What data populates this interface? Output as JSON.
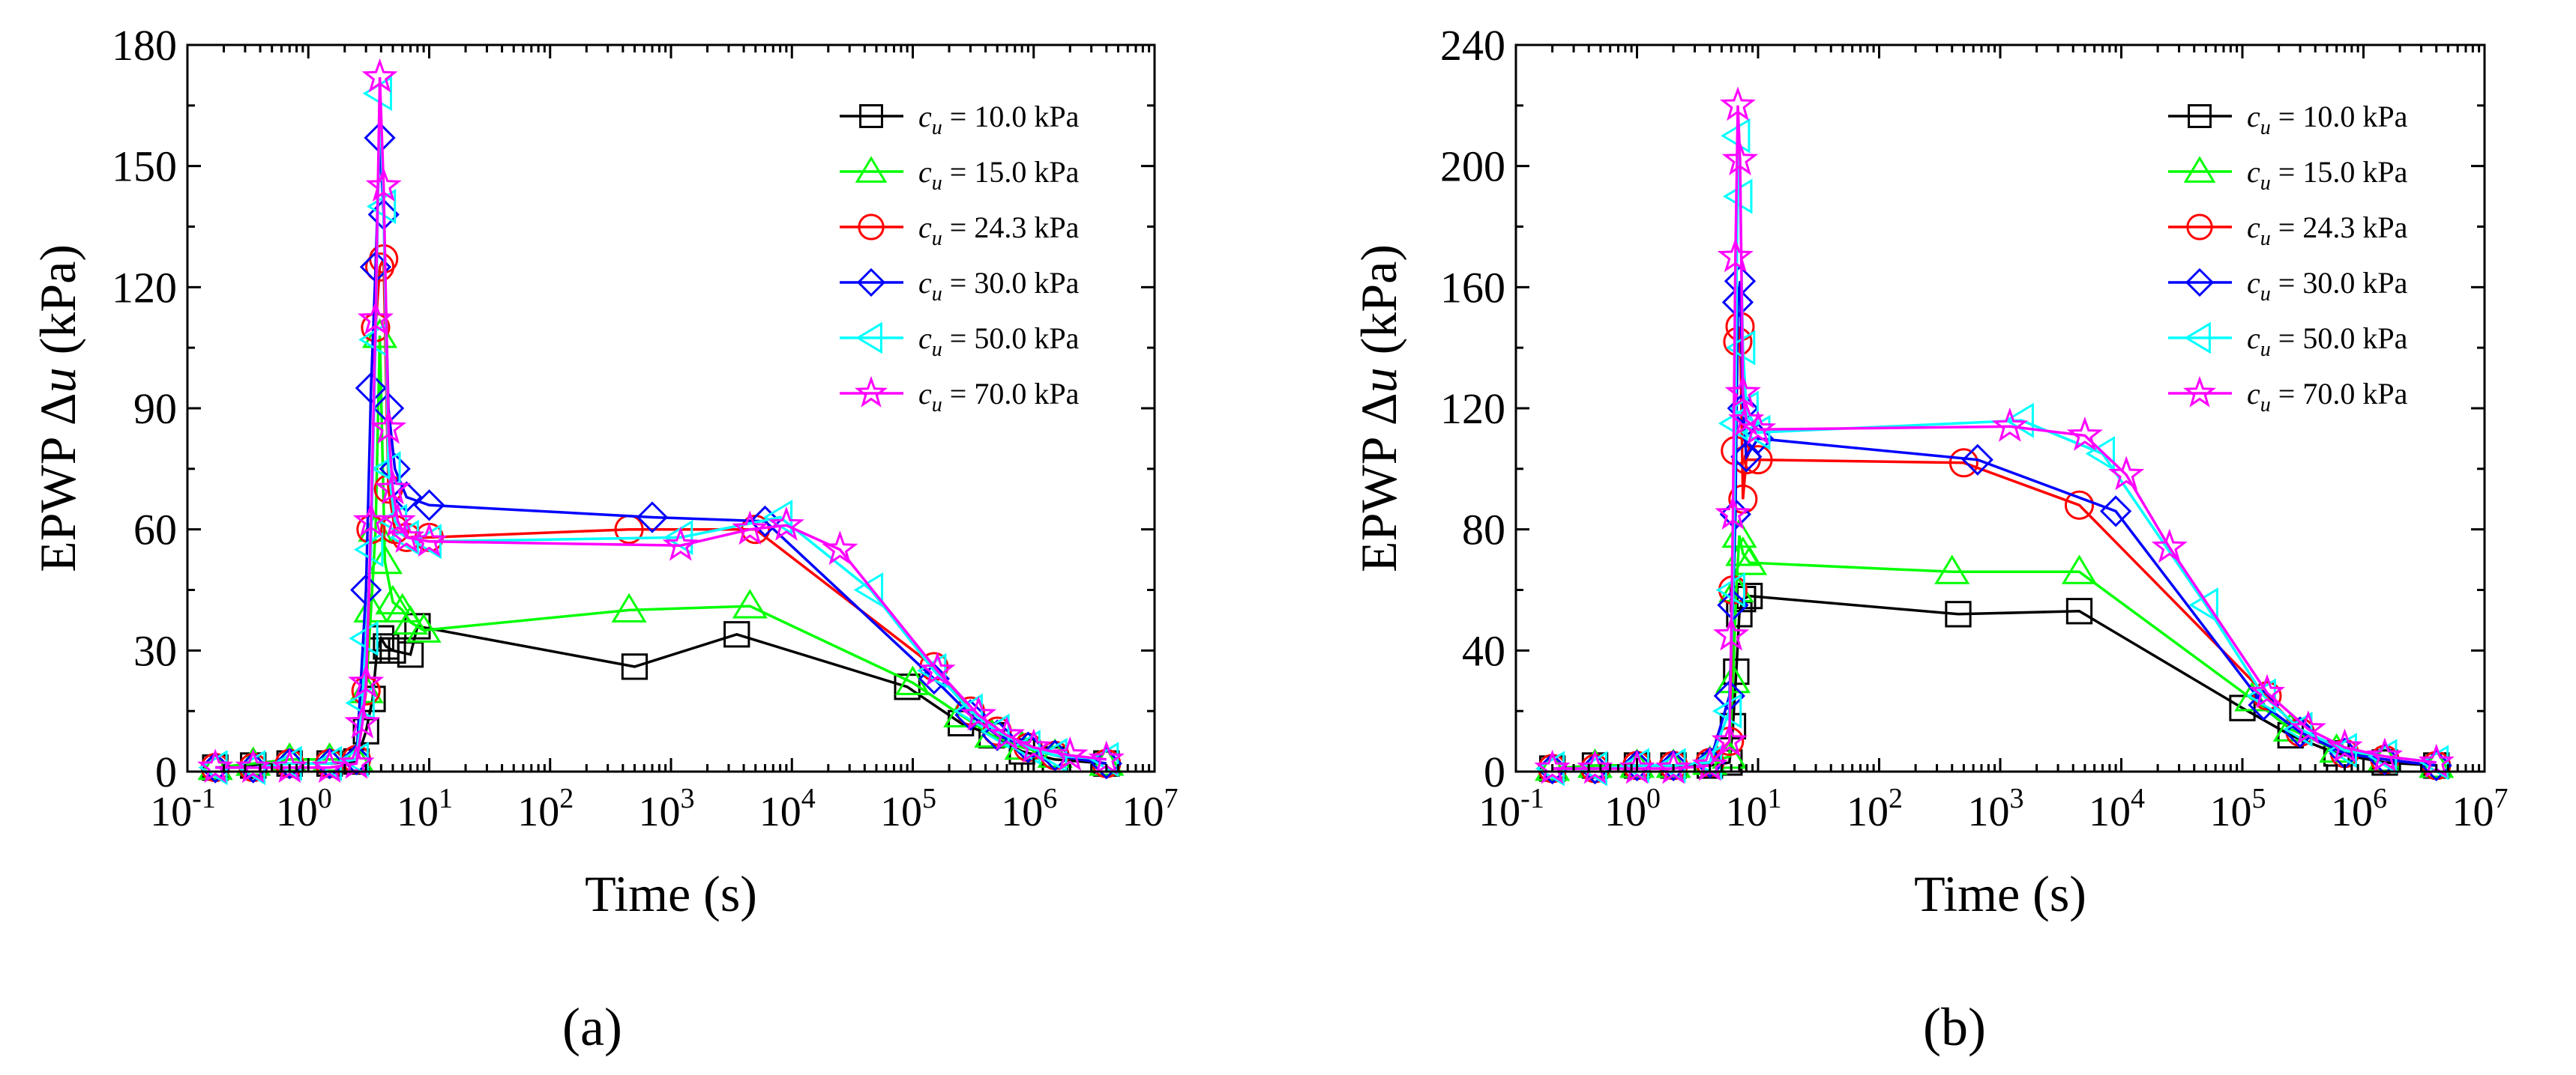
{
  "figure": {
    "panels": [
      {
        "label": "(a)"
      },
      {
        "label": "(b)"
      }
    ]
  },
  "chart_data": [
    {
      "type": "line",
      "panel": "(a)",
      "xscale": "log",
      "xlabel": "Time (s)",
      "ylabel": "EPWP Δu (kPa)",
      "xlim": [
        0.1,
        10000000
      ],
      "ylim": [
        0,
        180
      ],
      "yticks": [
        0,
        30,
        60,
        90,
        120,
        150,
        180
      ],
      "xtick_exponents": [
        "-1",
        "0",
        "1",
        "2",
        "3",
        "4",
        "5",
        "6",
        "7"
      ],
      "legend_position": "top-right",
      "series": [
        {
          "name": "c_u = 10.0 kPa",
          "legend_prefix": "c",
          "legend_sub": "u",
          "legend_rest": " = 10.0 kPa",
          "color": "#000000",
          "marker": "square",
          "x": [
            0.17,
            0.35,
            0.7,
            1.5,
            2.5,
            3.0,
            3.4,
            3.7,
            4.0,
            4.4,
            5.0,
            7.0,
            8.0,
            500,
            3500,
            90000,
            250000,
            450000,
            800000,
            1500000,
            4000000
          ],
          "y": [
            1,
            1.5,
            2,
            2,
            2.5,
            10,
            18,
            30,
            33,
            31,
            30,
            29,
            36,
            26,
            34,
            21,
            12,
            9,
            5,
            3,
            2
          ]
        },
        {
          "name": "c_u = 15.0 kPa",
          "legend_prefix": "c",
          "legend_sub": "u",
          "legend_rest": " = 15.0 kPa",
          "color": "#00ff00",
          "marker": "triangle",
          "x": [
            0.17,
            0.35,
            0.7,
            1.5,
            2.5,
            3.0,
            3.3,
            3.6,
            3.9,
            4.3,
            5.0,
            6.0,
            7.0,
            9.0,
            450,
            4500,
            100000,
            250000,
            450000,
            800000,
            1500000,
            4000000
          ],
          "y": [
            1,
            2,
            3,
            3,
            3,
            20,
            40,
            60,
            108,
            52,
            42,
            40,
            37,
            35,
            40,
            41,
            22,
            14,
            9,
            6,
            4,
            2
          ]
        },
        {
          "name": "c_u = 24.3 kPa",
          "legend_prefix": "c",
          "legend_sub": "u",
          "legend_rest": " = 24.3 kPa",
          "color": "#ff0000",
          "marker": "circle",
          "x": [
            0.17,
            0.35,
            0.7,
            1.5,
            2.5,
            3.0,
            3.3,
            3.6,
            3.9,
            4.2,
            4.6,
            5.2,
            6.5,
            10,
            450,
            5000,
            150000,
            300000,
            500000,
            900000,
            1500000,
            4000000
          ],
          "y": [
            1,
            1,
            2,
            2,
            3,
            20,
            60,
            110,
            125,
            127,
            70,
            60,
            58,
            58,
            60,
            60,
            26,
            15,
            10,
            6,
            4,
            2
          ]
        },
        {
          "name": "c_u = 30.0 kPa",
          "legend_prefix": "c",
          "legend_sub": "u",
          "legend_rest": " = 30.0 kPa",
          "color": "#0000ff",
          "marker": "diamond",
          "x": [
            0.17,
            0.35,
            0.7,
            1.5,
            2.5,
            3.0,
            3.3,
            3.6,
            3.9,
            4.2,
            4.6,
            5.2,
            6.5,
            10,
            700,
            6000,
            150000,
            300000,
            500000,
            900000,
            1500000,
            4000000
          ],
          "y": [
            1,
            1,
            2,
            2,
            3,
            45,
            95,
            125,
            157,
            138,
            90,
            75,
            68,
            66,
            63,
            62,
            23,
            14,
            9,
            6,
            4,
            2
          ]
        },
        {
          "name": "c_u = 50.0 kPa",
          "legend_prefix": "c",
          "legend_sub": "u",
          "legend_rest": " = 50.0 kPa",
          "color": "#00ffff",
          "marker": "triangle-left",
          "x": [
            0.17,
            0.35,
            0.7,
            1.5,
            2.5,
            2.8,
            3.0,
            3.3,
            3.6,
            3.9,
            4.2,
            4.6,
            5.2,
            6.5,
            10,
            1200,
            8000,
            45000,
            150000,
            300000,
            500000,
            900000,
            1500000,
            4000000
          ],
          "y": [
            1,
            1,
            2,
            2,
            3,
            17,
            33,
            55,
            107,
            168,
            140,
            75,
            62,
            58,
            57,
            58,
            63,
            45,
            25,
            15,
            10,
            6,
            4,
            3
          ]
        },
        {
          "name": "c_u = 70.0 kPa",
          "legend_prefix": "c",
          "legend_sub": "u",
          "legend_rest": " = 70.0 kPa",
          "color": "#ff00ff",
          "marker": "star",
          "x": [
            0.17,
            0.35,
            0.7,
            1.5,
            2.5,
            2.8,
            3.0,
            3.3,
            3.6,
            3.9,
            4.2,
            4.6,
            5.0,
            5.5,
            6.5,
            10,
            1200,
            4500,
            9000,
            25000,
            160000,
            350000,
            600000,
            1000000,
            2000000,
            4000000
          ],
          "y": [
            1,
            1,
            1,
            1,
            2,
            12,
            22,
            62,
            112,
            172,
            145,
            85,
            70,
            62,
            58,
            57,
            56,
            60,
            61,
            55,
            25,
            14,
            9,
            6,
            4,
            3
          ]
        }
      ]
    },
    {
      "type": "line",
      "panel": "(b)",
      "xscale": "log",
      "xlabel": "Time (s)",
      "ylabel": "EPWP Δu (kPa)",
      "xlim": [
        0.1,
        10000000
      ],
      "ylim": [
        0,
        240
      ],
      "yticks": [
        0,
        40,
        80,
        120,
        160,
        200,
        240
      ],
      "xtick_exponents": [
        "-1",
        "0",
        "1",
        "2",
        "3",
        "4",
        "5",
        "6",
        "7"
      ],
      "legend_position": "top-right",
      "series": [
        {
          "name": "c_u = 10.0 kPa",
          "legend_prefix": "c",
          "legend_sub": "u",
          "legend_rest": " = 10.0 kPa",
          "color": "#000000",
          "marker": "square",
          "x": [
            0.2,
            0.45,
            1.0,
            2.0,
            4.0,
            5.8,
            6.2,
            6.6,
            7.0,
            7.5,
            8.5,
            450,
            4500,
            100000,
            250000,
            600000,
            1500000,
            4000000
          ],
          "y": [
            1,
            2,
            2,
            2,
            2,
            3,
            15,
            33,
            52,
            57,
            58,
            52,
            53,
            21,
            12,
            6,
            3,
            2
          ]
        },
        {
          "name": "c_u = 15.0 kPa",
          "legend_prefix": "c",
          "legend_sub": "u",
          "legend_rest": " = 15.0 kPa",
          "color": "#00ff00",
          "marker": "triangle",
          "x": [
            0.2,
            0.45,
            1.0,
            2.0,
            4.0,
            5.8,
            6.2,
            6.6,
            7.0,
            7.5,
            8.5,
            400,
            4500,
            120000,
            250000,
            600000,
            1500000,
            4000000
          ],
          "y": [
            1,
            2,
            2,
            2,
            3,
            5,
            30,
            60,
            78,
            72,
            69,
            66,
            66,
            24,
            14,
            7,
            4,
            2
          ]
        },
        {
          "name": "c_u = 24.3 kPa",
          "legend_prefix": "c",
          "legend_sub": "u",
          "legend_rest": " = 24.3 kPa",
          "color": "#ff0000",
          "marker": "circle",
          "x": [
            0.2,
            0.45,
            1.0,
            2.0,
            4.0,
            5.8,
            6.2,
            6.5,
            6.8,
            7.1,
            7.5,
            8.0,
            10,
            500,
            4500,
            160000,
            300000,
            700000,
            1500000,
            4000000
          ],
          "y": [
            1,
            1,
            2,
            2,
            3,
            10,
            60,
            106,
            142,
            147,
            90,
            103,
            103,
            102,
            88,
            25,
            13,
            6,
            4,
            2
          ]
        },
        {
          "name": "c_u = 30.0 kPa",
          "legend_prefix": "c",
          "legend_sub": "u",
          "legend_rest": " = 30.0 kPa",
          "color": "#0000ff",
          "marker": "diamond",
          "x": [
            0.2,
            0.45,
            1.0,
            2.0,
            4.0,
            5.8,
            6.2,
            6.5,
            6.8,
            7.1,
            7.5,
            8.0,
            10,
            650,
            9000,
            150000,
            300000,
            700000,
            1500000,
            4000000
          ],
          "y": [
            1,
            1,
            2,
            2,
            3,
            25,
            55,
            85,
            155,
            162,
            120,
            104,
            110,
            103,
            86,
            22,
            13,
            6,
            4,
            2
          ]
        },
        {
          "name": "c_u = 50.0 kPa",
          "legend_prefix": "c",
          "legend_sub": "u",
          "legend_rest": " = 50.0 kPa",
          "color": "#00ffff",
          "marker": "triangle-left",
          "x": [
            0.2,
            0.45,
            1.0,
            2.0,
            4.0,
            5.8,
            6.2,
            6.5,
            6.8,
            7.1,
            7.5,
            8.0,
            10,
            1500,
            7000,
            50000,
            150000,
            300000,
            700000,
            1500000,
            4000000
          ],
          "y": [
            1,
            1,
            2,
            2,
            3,
            20,
            60,
            115,
            210,
            190,
            140,
            120,
            112,
            116,
            105,
            55,
            25,
            14,
            7,
            5,
            3
          ]
        },
        {
          "name": "c_u = 70.0 kPa",
          "legend_prefix": "c",
          "legend_sub": "u",
          "legend_rest": " = 70.0 kPa",
          "color": "#ff00ff",
          "marker": "star",
          "x": [
            0.2,
            0.45,
            1.0,
            2.0,
            4.0,
            5.8,
            6.0,
            6.2,
            6.5,
            6.8,
            7.1,
            7.5,
            8.0,
            10,
            1200,
            5000,
            11000,
            25000,
            160000,
            350000,
            700000,
            1500000,
            4000000
          ],
          "y": [
            1,
            1,
            1,
            1,
            2,
            10,
            45,
            85,
            170,
            220,
            202,
            125,
            116,
            113,
            114,
            111,
            98,
            74,
            26,
            14,
            8,
            5,
            3
          ]
        }
      ]
    }
  ]
}
